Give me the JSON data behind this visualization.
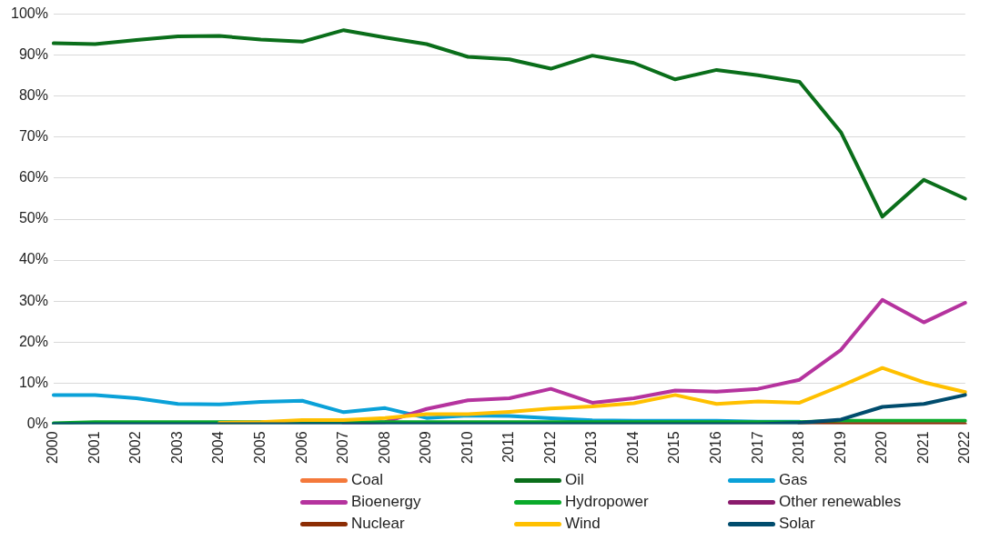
{
  "chart_data": {
    "type": "line",
    "categories": [
      "2000",
      "2001",
      "2002",
      "2003",
      "2004",
      "2005",
      "2006",
      "2007",
      "2008",
      "2009",
      "2010",
      "2011",
      "2012",
      "2013",
      "2014",
      "2015",
      "2016",
      "2017",
      "2018",
      "2019",
      "2020",
      "2021",
      "2022"
    ],
    "series": [
      {
        "name": "Coal",
        "color": "#f4793b",
        "values": [
          null,
          null,
          null,
          null,
          null,
          null,
          null,
          null,
          null,
          null,
          null,
          null,
          null,
          null,
          null,
          null,
          null,
          null,
          null,
          null,
          null,
          null,
          null
        ]
      },
      {
        "name": "Oil",
        "color": "#0a6e1a",
        "values": [
          92.9,
          92.7,
          93.7,
          94.6,
          94.7,
          93.8,
          93.3,
          96.1,
          94.3,
          92.7,
          89.6,
          89.0,
          86.7,
          89.9,
          88.1,
          84.1,
          86.4,
          85.1,
          83.5,
          71.2,
          50.6,
          59.6,
          55.0
        ]
      },
      {
        "name": "Gas",
        "color": "#0aa1d8",
        "values": [
          7.1,
          7.1,
          6.3,
          4.9,
          4.8,
          5.4,
          5.7,
          2.9,
          3.9,
          1.5,
          2.1,
          2.0,
          1.4,
          0.9,
          0.8,
          0.8,
          0.8,
          0.6,
          0.6,
          null,
          null,
          null,
          null
        ]
      },
      {
        "name": "Bioenergy",
        "color": "#b5339e",
        "values": [
          null,
          null,
          null,
          null,
          null,
          null,
          null,
          0,
          0.5,
          3.7,
          5.8,
          6.3,
          8.6,
          5.2,
          6.3,
          8.2,
          7.9,
          8.6,
          10.8,
          18.1,
          30.3,
          24.8,
          29.6
        ]
      },
      {
        "name": "Hydropower",
        "color": "#0aaa2a",
        "values": [
          0.2,
          0.5,
          0.5,
          0.5,
          0.5,
          0.5,
          0.5,
          0.5,
          0.5,
          0.5,
          0.5,
          0.5,
          0.5,
          0.5,
          0.5,
          0.5,
          0.5,
          0.5,
          0.5,
          0.8,
          0.8,
          0.8,
          0.8
        ]
      },
      {
        "name": "Other renewables",
        "color": "#8a1a6c",
        "values": [
          null,
          null,
          null,
          null,
          null,
          null,
          null,
          null,
          null,
          null,
          null,
          null,
          null,
          null,
          null,
          null,
          null,
          null,
          null,
          null,
          null,
          null,
          null
        ]
      },
      {
        "name": "Nuclear",
        "color": "#8c2d04",
        "values": [
          null,
          null,
          null,
          null,
          null,
          null,
          null,
          null,
          null,
          null,
          null,
          null,
          null,
          null,
          null,
          null,
          null,
          null,
          0,
          0,
          0,
          0,
          0
        ]
      },
      {
        "name": "Wind",
        "color": "#ffc000",
        "values": [
          null,
          null,
          null,
          null,
          0.3,
          0.5,
          1.0,
          1.0,
          1.5,
          2.4,
          2.4,
          3.0,
          3.8,
          4.3,
          5.1,
          7.1,
          4.9,
          5.5,
          5.2,
          9.3,
          13.7,
          10.2,
          7.8
        ]
      },
      {
        "name": "Solar",
        "color": "#004c6d",
        "values": [
          0,
          0,
          0,
          0,
          0,
          0,
          0,
          0,
          0,
          0,
          0,
          0,
          0,
          0,
          0,
          0,
          0,
          0,
          0.3,
          1.1,
          4.2,
          4.9,
          7.1
        ]
      }
    ],
    "ylim": [
      0,
      100
    ],
    "yticks": [
      {
        "value": 0,
        "label": "0%"
      },
      {
        "value": 10,
        "label": "10%"
      },
      {
        "value": 20,
        "label": "20%"
      },
      {
        "value": 30,
        "label": "30%"
      },
      {
        "value": 40,
        "label": "40%"
      },
      {
        "value": 50,
        "label": "50%"
      },
      {
        "value": 60,
        "label": "60%"
      },
      {
        "value": 70,
        "label": "70%"
      },
      {
        "value": 80,
        "label": "80%"
      },
      {
        "value": 90,
        "label": "90%"
      },
      {
        "value": 100,
        "label": "100%"
      }
    ],
    "grid": "y",
    "legend": "bottom",
    "marker": "none",
    "line_style": "solid"
  }
}
